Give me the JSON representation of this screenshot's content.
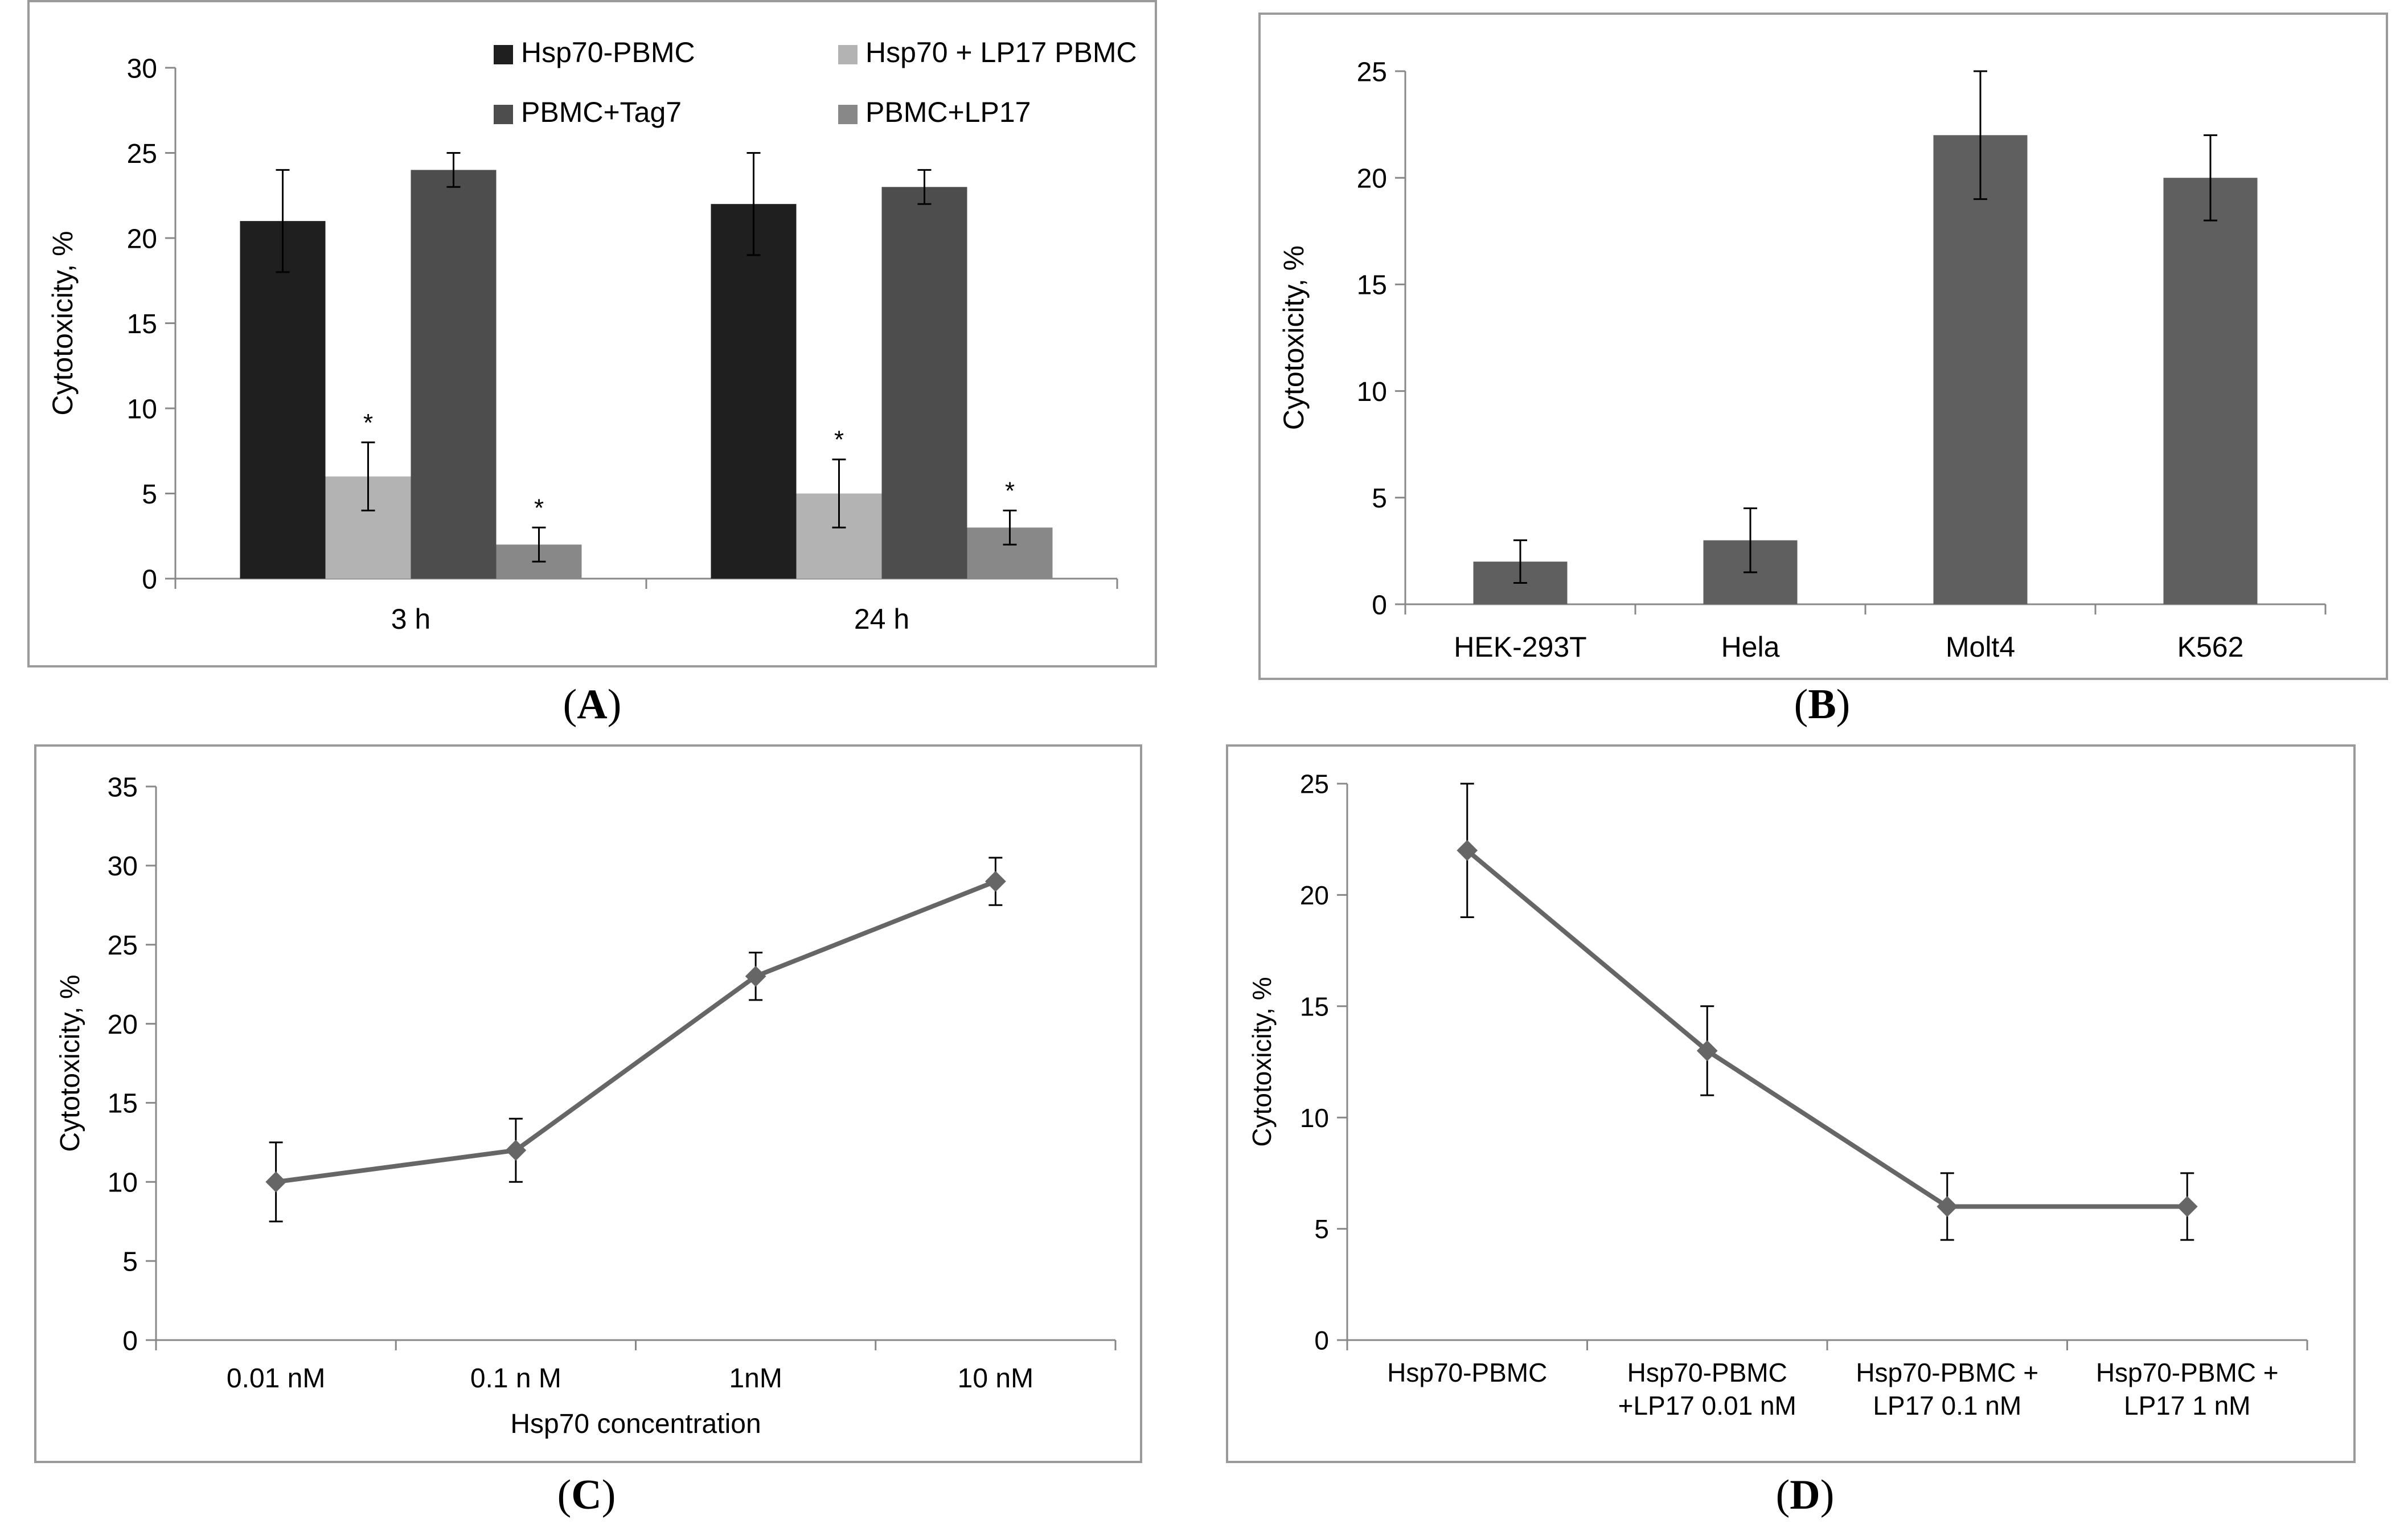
{
  "chart_data": [
    {
      "id": "A",
      "type": "bar",
      "caption_letter": "A",
      "ylabel": "Cytotoxicity, %",
      "ylim": [
        0,
        30
      ],
      "yticks": [
        0,
        5,
        10,
        15,
        20,
        25,
        30
      ],
      "categories": [
        "3 h",
        "24 h"
      ],
      "legend_position": "top",
      "series": [
        {
          "name": "Hsp70-PBMC",
          "color": "#1f1f1f",
          "values": [
            21,
            22
          ],
          "errors": [
            3,
            3
          ],
          "stars": [
            "",
            ""
          ]
        },
        {
          "name": "Hsp70 + LP17 PBMC",
          "color": "#b3b3b3",
          "values": [
            6,
            5
          ],
          "errors": [
            2,
            2
          ],
          "stars": [
            "*",
            "*"
          ]
        },
        {
          "name": "PBMC+Tag7",
          "color": "#4d4d4d",
          "values": [
            24,
            23
          ],
          "errors": [
            1,
            1
          ],
          "stars": [
            "",
            ""
          ]
        },
        {
          "name": "PBMC+LP17",
          "color": "#888888",
          "values": [
            2,
            3
          ],
          "errors": [
            1,
            1
          ],
          "stars": [
            "*",
            "*"
          ]
        }
      ]
    },
    {
      "id": "B",
      "type": "bar",
      "caption_letter": "B",
      "ylabel": "Cytotoxicity, %",
      "ylim": [
        0,
        25
      ],
      "yticks": [
        0,
        5,
        10,
        15,
        20,
        25
      ],
      "categories": [
        "HEK-293T",
        "Hela",
        "Molt4",
        "K562"
      ],
      "series": [
        {
          "name": "Cytotoxicity",
          "color": "#5f5f5f",
          "values": [
            2,
            3,
            22,
            20
          ],
          "errors": [
            1,
            1.5,
            3,
            2
          ]
        }
      ]
    },
    {
      "id": "C",
      "type": "line",
      "caption_letter": "C",
      "ylabel": "Cytotoxicity, %",
      "xlabel": "Hsp70 concentration",
      "ylim": [
        0,
        35
      ],
      "yticks": [
        0,
        5,
        10,
        15,
        20,
        25,
        30,
        35
      ],
      "categories": [
        "0.01 nM",
        "0.1 n M",
        "1nM",
        "10 nM"
      ],
      "series": [
        {
          "name": "Cytotoxicity",
          "color": "#666666",
          "values": [
            10,
            12,
            23,
            29
          ],
          "errors": [
            2.5,
            2,
            1.5,
            1.5
          ]
        }
      ]
    },
    {
      "id": "D",
      "type": "line",
      "caption_letter": "D",
      "ylabel": "Cytotoxicity, %",
      "ylim": [
        0,
        25
      ],
      "yticks": [
        0,
        5,
        10,
        15,
        20,
        25
      ],
      "categories": [
        [
          "Hsp70-PBMC"
        ],
        [
          "Hsp70-PBMC",
          "+LP17  0.01 nM"
        ],
        [
          "Hsp70-PBMC +",
          "LP17 0.1 nM"
        ],
        [
          "Hsp70-PBMC +",
          "LP17  1 nM"
        ]
      ],
      "series": [
        {
          "name": "Cytotoxicity",
          "color": "#666666",
          "values": [
            22,
            13,
            6,
            6
          ],
          "errors": [
            3,
            2,
            1.5,
            1.5
          ]
        }
      ]
    }
  ]
}
